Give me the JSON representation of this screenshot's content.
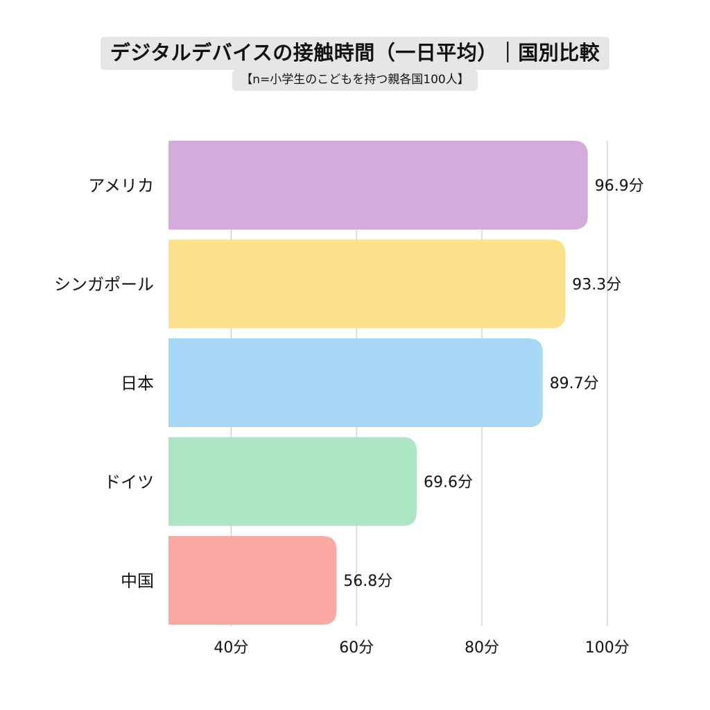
{
  "title": "デジタルデバイスの接触時間（一日平均）｜国別比較",
  "subtitle": "【n=小学生のこどもを持つ親各国100人】",
  "chart_data": {
    "type": "bar",
    "orientation": "horizontal",
    "categories": [
      "アメリカ",
      "シンガポール",
      "日本",
      "ドイツ",
      "中国"
    ],
    "values": [
      96.9,
      93.3,
      89.7,
      69.6,
      56.8
    ],
    "value_labels": [
      "96.9分",
      "93.3分",
      "89.7分",
      "69.6分",
      "56.8分"
    ],
    "colors": [
      "#d4abdc",
      "#fce08c",
      "#a6d7f5",
      "#aee5c5",
      "#fba9a3"
    ],
    "xlim": [
      30,
      100
    ],
    "xticks": [
      40,
      60,
      80,
      100
    ],
    "xtick_labels": [
      "40分",
      "60分",
      "80分",
      "100分"
    ],
    "grid": true,
    "grid_color": "#cccccc"
  }
}
